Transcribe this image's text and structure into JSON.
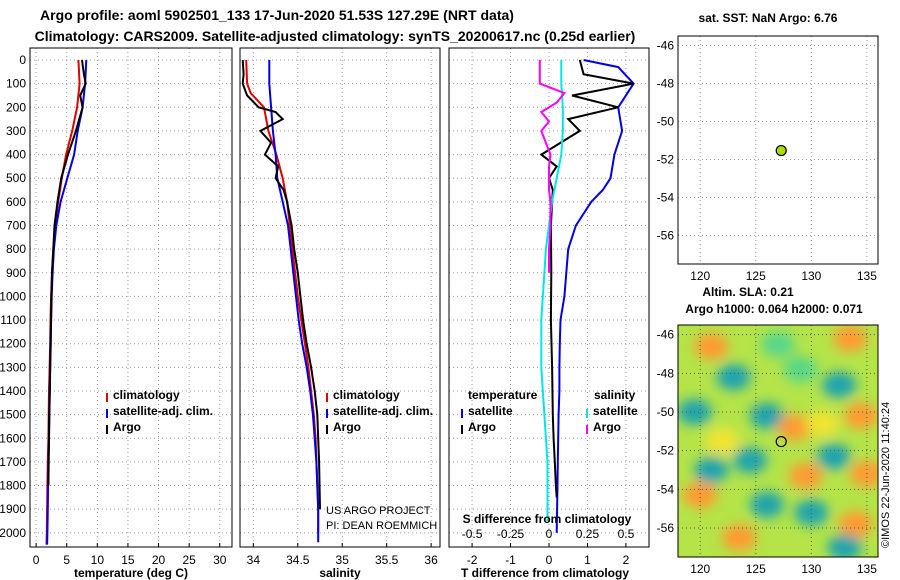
{
  "header": {
    "line1": "Argo profile: aoml 5902501_133 17-Jun-2020 51.53S 127.29E (NRT data)",
    "line2": "Climatology: CARS2009. Satellite-adjusted climatology: synTS_20200617.nc (0.25d earlier)"
  },
  "colors": {
    "climatology": "#e00000",
    "satellite": "#0000e6",
    "argo": "#000000",
    "argo_s_diff": "#ff00ff",
    "sat_s_diff": "#00e6e6",
    "grid": "#9a9a9a",
    "argo_marker": "#a8e000"
  },
  "depth_axis": {
    "ticks": [
      0,
      100,
      200,
      300,
      400,
      500,
      600,
      700,
      800,
      900,
      1000,
      1100,
      1200,
      1300,
      1400,
      1500,
      1600,
      1700,
      1800,
      1900,
      2000
    ],
    "ylim": [
      2060,
      0
    ]
  },
  "legend_labels": {
    "climatology": "climatology",
    "satellite_adj": "satellite-adj. clim.",
    "argo": "Argo",
    "temperature": "temperature",
    "salinity": "salinity",
    "satellite": "satellite"
  },
  "annotations": {
    "project": "US ARGO PROJECT",
    "pi": "PI: DEAN ROEMMICH"
  },
  "chart_data": [
    {
      "type": "line",
      "id": "temperature",
      "xlabel": "temperature (deg C)",
      "xlim": [
        -1,
        32
      ],
      "xticks": [
        0,
        5,
        10,
        15,
        20,
        25,
        30
      ],
      "ylabel_ticks": "depth",
      "series": [
        {
          "name": "climatology",
          "color_key": "climatology",
          "x": [
            6.9,
            7.1,
            6.7,
            5.9,
            4.9,
            4.2,
            3.6,
            3.1,
            2.8,
            2.6,
            2.45,
            2.35,
            2.3,
            2.2,
            2.1,
            2.05,
            2.0,
            1.9,
            1.85,
            1.8,
            1.75,
            1.7
          ],
          "y": [
            0,
            100,
            200,
            300,
            400,
            500,
            600,
            700,
            800,
            900,
            1000,
            1100,
            1200,
            1300,
            1400,
            1500,
            1600,
            1700,
            1800,
            1900,
            2000,
            2050
          ]
        },
        {
          "name": "satellite-adj. clim.",
          "color_key": "satellite",
          "x": [
            8.2,
            8.0,
            7.6,
            6.8,
            6.2,
            5.1,
            4.0,
            3.3,
            2.9,
            2.7,
            2.55,
            2.45,
            2.4,
            2.3,
            2.2,
            2.15,
            2.1,
            2.0,
            1.95,
            1.9,
            1.85,
            1.8
          ],
          "y": [
            0,
            100,
            200,
            300,
            400,
            500,
            600,
            700,
            800,
            900,
            1000,
            1100,
            1200,
            1300,
            1400,
            1500,
            1600,
            1700,
            1800,
            1900,
            2000,
            2050
          ]
        },
        {
          "name": "Argo",
          "color_key": "argo",
          "x": [
            7.5,
            7.8,
            8.1,
            7.2,
            7.6,
            6.5,
            5.2,
            4.1,
            3.5,
            3.0,
            2.8,
            2.6,
            2.5,
            2.45,
            2.35,
            2.3,
            2.25,
            2.15,
            2.1,
            2.05,
            2.0
          ],
          "y": [
            0,
            60,
            100,
            150,
            200,
            300,
            400,
            500,
            600,
            700,
            800,
            900,
            1000,
            1100,
            1200,
            1300,
            1400,
            1500,
            1600,
            1700,
            1800
          ]
        }
      ]
    },
    {
      "type": "line",
      "id": "salinity",
      "xlabel": "salinity",
      "xlim": [
        33.85,
        36.1
      ],
      "xticks": [
        34,
        34.5,
        35,
        35.5,
        36
      ],
      "series": [
        {
          "name": "climatology",
          "color_key": "climatology",
          "x": [
            33.92,
            33.93,
            33.97,
            34.12,
            34.17,
            34.26,
            34.33,
            34.38,
            34.41,
            34.44,
            34.47,
            34.5,
            34.54,
            34.58,
            34.62,
            34.65,
            34.68,
            34.7,
            34.71,
            34.72,
            34.73,
            34.73
          ],
          "y": [
            0,
            100,
            140,
            200,
            300,
            400,
            500,
            600,
            700,
            800,
            900,
            1000,
            1100,
            1200,
            1300,
            1400,
            1500,
            1600,
            1700,
            1800,
            1900,
            2000
          ]
        },
        {
          "name": "satellite-adj. clim.",
          "color_key": "satellite",
          "x": [
            34.18,
            34.18,
            34.2,
            34.22,
            34.25,
            34.27,
            34.33,
            34.39,
            34.42,
            34.45,
            34.48,
            34.51,
            34.55,
            34.6,
            34.64,
            34.67,
            34.69,
            34.71,
            34.72,
            34.73,
            34.73,
            34.73
          ],
          "y": [
            0,
            100,
            200,
            300,
            400,
            500,
            600,
            700,
            800,
            900,
            1000,
            1100,
            1200,
            1300,
            1400,
            1500,
            1600,
            1700,
            1800,
            1900,
            2000,
            2040
          ]
        },
        {
          "name": "Argo",
          "color_key": "argo",
          "x": [
            33.88,
            33.89,
            33.88,
            33.93,
            34.06,
            34.25,
            34.33,
            34.08,
            34.2,
            34.13,
            34.28,
            34.25,
            34.34,
            34.38,
            34.43,
            34.46,
            34.5,
            34.53,
            34.56,
            34.6,
            34.65,
            34.69,
            34.72,
            34.74,
            34.75
          ],
          "y": [
            0,
            60,
            100,
            150,
            200,
            220,
            250,
            300,
            350,
            400,
            450,
            500,
            550,
            600,
            700,
            800,
            900,
            1000,
            1100,
            1200,
            1300,
            1400,
            1500,
            1700,
            1900
          ]
        }
      ]
    },
    {
      "type": "line",
      "id": "difference",
      "xlabel": "T difference from climatology",
      "xlabel2": "S difference from climatology",
      "xlim": [
        -2.6,
        2.6
      ],
      "xticks": [
        -2,
        -1,
        0,
        1,
        2
      ],
      "xlim_s": [
        -0.65,
        0.65
      ],
      "xticks_s": [
        -0.5,
        -0.25,
        0,
        0.25,
        0.5
      ],
      "series": [
        {
          "name": "temperature satellite",
          "color_key": "satellite",
          "axis": "T",
          "x": [
            0.9,
            1.8,
            2.2,
            1.8,
            1.9,
            1.7,
            1.6,
            1.4,
            1.1,
            0.7,
            0.5,
            0.4,
            0.3,
            0.28,
            0.27,
            0.27,
            0.25,
            0.24,
            0.23,
            0.22,
            0.2
          ],
          "y": [
            0,
            30,
            100,
            200,
            300,
            400,
            500,
            550,
            600,
            700,
            800,
            1000,
            1100,
            1200,
            1300,
            1400,
            1500,
            1600,
            1700,
            1800,
            2000
          ]
        },
        {
          "name": "temperature Argo",
          "color_key": "argo",
          "axis": "T",
          "x": [
            0.8,
            0.9,
            2.2,
            0.6,
            1.8,
            0.5,
            0.8,
            -0.2,
            0.2,
            0.0,
            0.1,
            0.05,
            0.06,
            0.05,
            0.08,
            0.1,
            0.12,
            0.15,
            0.18,
            0.2
          ],
          "y": [
            0,
            60,
            100,
            150,
            200,
            250,
            300,
            400,
            450,
            500,
            550,
            700,
            900,
            1100,
            1300,
            1500,
            1600,
            1700,
            1800,
            1850
          ]
        },
        {
          "name": "salinity satellite",
          "color_key": "sat_s_diff",
          "axis": "S",
          "x": [
            0.08,
            0.08,
            0.09,
            0.09,
            0.08,
            0.05,
            0.02,
            0.0,
            -0.02,
            -0.03,
            -0.04,
            -0.05,
            -0.05,
            -0.05,
            -0.04,
            -0.03,
            -0.02,
            -0.01,
            -0.01
          ],
          "y": [
            0,
            100,
            200,
            300,
            400,
            500,
            600,
            700,
            800,
            900,
            1000,
            1100,
            1200,
            1300,
            1400,
            1500,
            1600,
            1700,
            1950
          ]
        },
        {
          "name": "salinity Argo",
          "color_key": "argo_s_diff",
          "axis": "S",
          "x": [
            -0.06,
            -0.06,
            0.1,
            0.05,
            -0.05,
            0.0,
            -0.05,
            0.01,
            0.0,
            0.0,
            0.0,
            0.01,
            0.01,
            0.0,
            0.0
          ],
          "y": [
            0,
            100,
            140,
            180,
            220,
            260,
            300,
            400,
            450,
            500,
            550,
            600,
            700,
            800,
            900
          ]
        }
      ]
    },
    {
      "type": "scatter",
      "id": "sst_map",
      "title": "sat. SST: NaN Argo: 6.76",
      "xlim": [
        118,
        136
      ],
      "ylim": [
        -57.5,
        -45.5
      ],
      "xticks": [
        120,
        125,
        130,
        135
      ],
      "yticks": [
        -46,
        -48,
        -50,
        -52,
        -54,
        -56
      ],
      "points": [
        {
          "x": 127.29,
          "y": -51.53
        }
      ]
    },
    {
      "type": "heatmap",
      "id": "sla_map",
      "title": "Altim.  SLA: 0.21",
      "subtitle": "Argo h1000: 0.064 h2000: 0.071",
      "side_label": "©IMOS 22-Jun-2020 11:40:24",
      "xlim": [
        118,
        136
      ],
      "ylim": [
        -57.5,
        -45.5
      ],
      "xticks": [
        120,
        125,
        130,
        135
      ],
      "yticks": [
        -46,
        -48,
        -50,
        -52,
        -54,
        -56
      ],
      "points": [
        {
          "x": 127.29,
          "y": -51.53
        }
      ],
      "blobs": [
        {
          "x": 121,
          "y": -46.6,
          "v": 0.9
        },
        {
          "x": 127,
          "y": -46.5,
          "v": -0.2
        },
        {
          "x": 133.5,
          "y": -46.2,
          "v": 0.9
        },
        {
          "x": 123,
          "y": -48.2,
          "v": -0.9
        },
        {
          "x": 129,
          "y": -47.8,
          "v": -0.3
        },
        {
          "x": 132.5,
          "y": -48.6,
          "v": -1.0
        },
        {
          "x": 134.5,
          "y": -50.2,
          "v": 0.9
        },
        {
          "x": 119.5,
          "y": -50.0,
          "v": -0.5
        },
        {
          "x": 126,
          "y": -50.2,
          "v": -0.8
        },
        {
          "x": 128.5,
          "y": -50.8,
          "v": 0.9
        },
        {
          "x": 131,
          "y": -50.6,
          "v": 0.4
        },
        {
          "x": 122,
          "y": -51.5,
          "v": 0.2
        },
        {
          "x": 124.5,
          "y": -52.5,
          "v": -1.0
        },
        {
          "x": 132,
          "y": -52.3,
          "v": -0.9
        },
        {
          "x": 129.5,
          "y": -53.3,
          "v": 0.8
        },
        {
          "x": 135,
          "y": -53.2,
          "v": 0.7
        },
        {
          "x": 120,
          "y": -54.3,
          "v": 0.8
        },
        {
          "x": 126,
          "y": -54.8,
          "v": -0.9
        },
        {
          "x": 130,
          "y": -55.2,
          "v": -1.0
        },
        {
          "x": 123.5,
          "y": -56.5,
          "v": 0.9
        },
        {
          "x": 134,
          "y": -55.8,
          "v": 0.7
        },
        {
          "x": 121,
          "y": -53.0,
          "v": -0.7
        },
        {
          "x": 133,
          "y": -57.0,
          "v": -0.6
        }
      ]
    }
  ]
}
